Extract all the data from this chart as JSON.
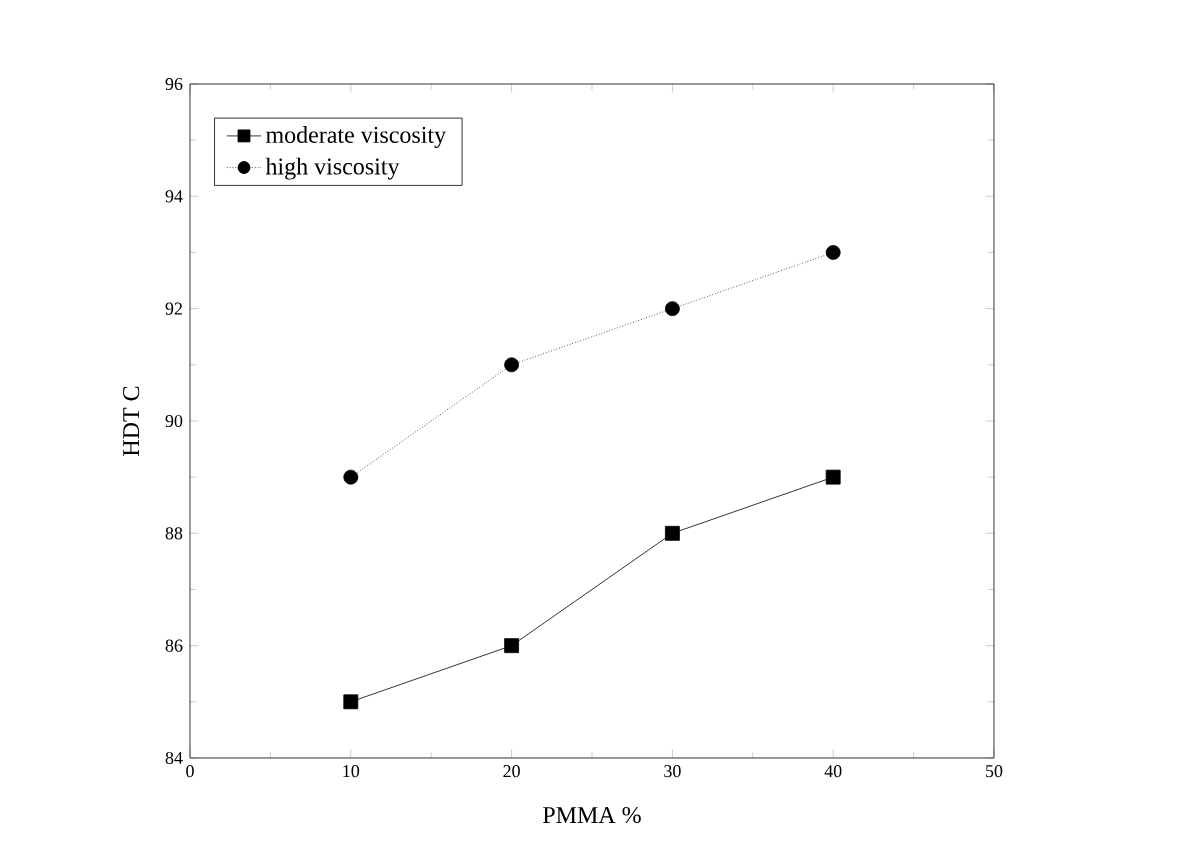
{
  "chart_data": {
    "type": "line",
    "xlabel": "PMMA %",
    "ylabel": "HDT  C",
    "x": [
      10,
      20,
      30,
      40
    ],
    "series": [
      {
        "name": "moderate viscosity",
        "color": "#000000",
        "values": [
          85,
          86,
          88,
          89
        ],
        "marker": "square",
        "line_style": "solid"
      },
      {
        "name": "high viscosity",
        "color": "#000000",
        "values": [
          89,
          91,
          92,
          93
        ],
        "marker": "circle",
        "line_style": "dotted"
      }
    ],
    "xlim": [
      0,
      50
    ],
    "xticks": [
      0,
      10,
      20,
      30,
      40,
      50
    ],
    "ylim": [
      84,
      96
    ],
    "yticks": [
      84,
      86,
      88,
      90,
      92,
      94,
      96
    ],
    "grid": false,
    "legend": "top left"
  }
}
